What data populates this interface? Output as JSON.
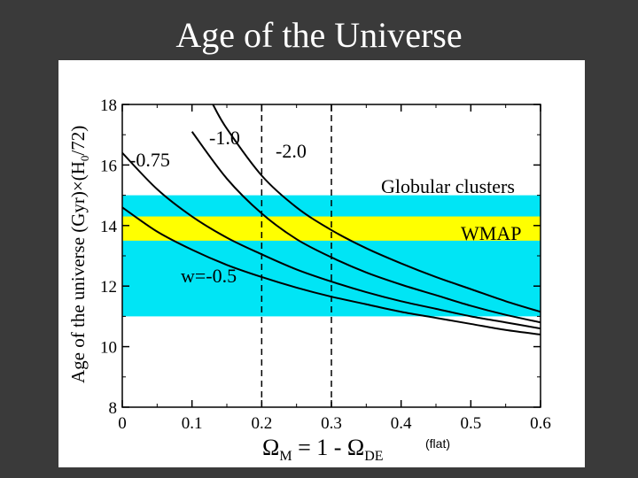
{
  "slide": {
    "title": "Age of the Universe"
  },
  "chart_data": {
    "type": "line",
    "title": "Age of the Universe",
    "xlabel_main": "Ω",
    "xlabel_sub_m": "M",
    "xlabel_mid": " = 1 - Ω",
    "xlabel_sub_de": "DE",
    "xlabel_note": "(flat)",
    "ylabel": "Age of the universe (Gyr)×(H",
    "ylabel_sub": "0",
    "ylabel_tail": "/72)",
    "xlim": [
      0,
      0.6
    ],
    "ylim": [
      8,
      18
    ],
    "xticks": [
      "0",
      "0.1",
      "0.2",
      "0.3",
      "0.4",
      "0.5",
      "0.6"
    ],
    "xtick_values": [
      0,
      0.1,
      0.2,
      0.3,
      0.4,
      0.5,
      0.6
    ],
    "yticks": [
      "8",
      "10",
      "12",
      "14",
      "16",
      "18"
    ],
    "ytick_values": [
      8,
      10,
      12,
      14,
      16,
      18
    ],
    "bands": [
      {
        "name": "Globular clusters",
        "y0": 11.0,
        "y1": 15.0,
        "color": "#00e5f5"
      },
      {
        "name": "WMAP",
        "y0": 13.5,
        "y1": 14.3,
        "color": "#ffff00"
      }
    ],
    "vlines": [
      0.2,
      0.3
    ],
    "series": [
      {
        "name": "w=-0.5",
        "label": "w=-0.5",
        "x": [
          0.0,
          0.05,
          0.1,
          0.15,
          0.2,
          0.25,
          0.3,
          0.35,
          0.4,
          0.45,
          0.5,
          0.55,
          0.6
        ],
        "y": [
          14.6,
          13.8,
          13.2,
          12.7,
          12.3,
          11.95,
          11.65,
          11.4,
          11.15,
          10.95,
          10.75,
          10.55,
          10.4
        ]
      },
      {
        "name": "w=-0.75",
        "label": "-0.75",
        "x": [
          0.0,
          0.05,
          0.1,
          0.15,
          0.2,
          0.25,
          0.3,
          0.35,
          0.4,
          0.45,
          0.5,
          0.55,
          0.6
        ],
        "y": [
          16.4,
          15.2,
          14.3,
          13.6,
          13.05,
          12.55,
          12.15,
          11.8,
          11.5,
          11.25,
          11.0,
          10.8,
          10.6
        ]
      },
      {
        "name": "w=-1.0",
        "label": "-1.0",
        "x": [
          0.1,
          0.15,
          0.2,
          0.25,
          0.3,
          0.35,
          0.4,
          0.45,
          0.5,
          0.55,
          0.6
        ],
        "y": [
          17.1,
          15.55,
          14.4,
          13.55,
          12.95,
          12.45,
          12.05,
          11.7,
          11.35,
          11.05,
          10.8
        ]
      },
      {
        "name": "w=-2.0",
        "label": "-2.0",
        "x": [
          0.13,
          0.15,
          0.2,
          0.25,
          0.3,
          0.35,
          0.4,
          0.45,
          0.5,
          0.55,
          0.6
        ],
        "y": [
          18.0,
          17.2,
          15.65,
          14.6,
          13.85,
          13.25,
          12.75,
          12.3,
          11.9,
          11.5,
          11.15
        ]
      }
    ]
  }
}
